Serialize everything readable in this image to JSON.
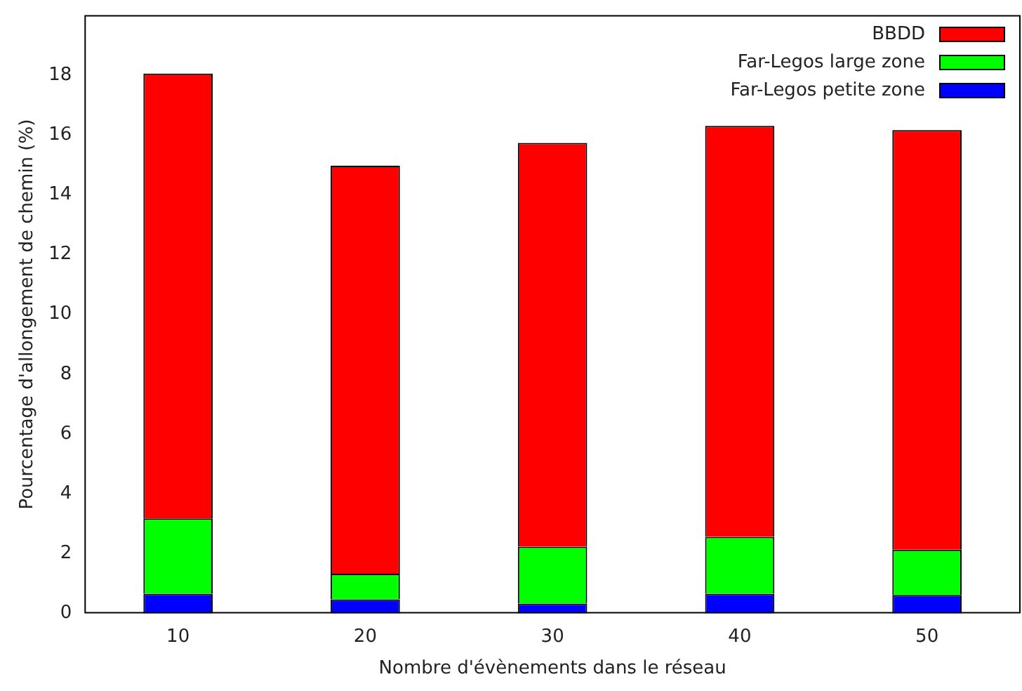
{
  "chart_data": {
    "type": "bar",
    "stacked": true,
    "xlabel": "Nombre d'évènements dans le réseau",
    "ylabel": "Pourcentage d'allongement de chemin (%)",
    "categories": [
      "10",
      "20",
      "30",
      "40",
      "50"
    ],
    "series": [
      {
        "name": "Far-Legos petite zone",
        "color": "#0000ff",
        "values": [
          0.66,
          0.47,
          0.33,
          0.66,
          0.62
        ]
      },
      {
        "name": "Far-Legos large zone",
        "color": "#00ff00",
        "values": [
          2.52,
          0.86,
          1.9,
          1.9,
          1.51
        ]
      },
      {
        "name": "BBDD",
        "color": "#ff0000",
        "values": [
          14.87,
          13.64,
          13.5,
          13.74,
          14.03
        ]
      }
    ],
    "ylim": [
      0,
      20
    ],
    "yticks": [
      0,
      2,
      4,
      6,
      8,
      10,
      12,
      14,
      16,
      18
    ],
    "grid": false,
    "legend": "top right"
  }
}
